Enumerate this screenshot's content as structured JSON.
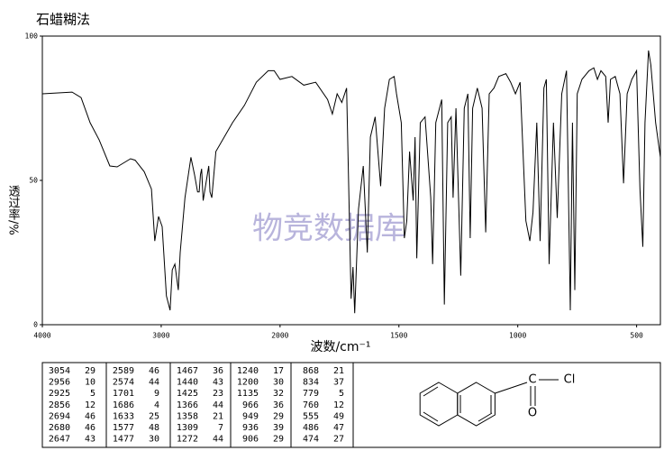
{
  "chart_data": {
    "type": "line",
    "title": "石蜡糊法",
    "y_label": "透过率/%",
    "x_label": "波数/cm⁻¹",
    "watermark": "物竞数据库",
    "color": "#000000",
    "xlim": [
      4000,
      400
    ],
    "x_scale_break": 2000,
    "xticks": [
      4000,
      3000,
      2000,
      1500,
      1000,
      500
    ],
    "ylim": [
      0,
      100
    ],
    "yticks": [
      0,
      50,
      100
    ],
    "x": [
      4000,
      3750,
      3674,
      3598,
      3522,
      3432,
      3371,
      3258,
      3219,
      3143,
      3082,
      3054,
      3022,
      2992,
      2956,
      2925,
      2907,
      2885,
      2856,
      2840,
      2800,
      2750,
      2720,
      2694,
      2680,
      2670,
      2660,
      2647,
      2620,
      2600,
      2589,
      2574,
      2540,
      2400,
      2300,
      2200,
      2100,
      2050,
      2000,
      1950,
      1900,
      1850,
      1800,
      1780,
      1760,
      1740,
      1720,
      1701,
      1693,
      1686,
      1670,
      1650,
      1633,
      1620,
      1600,
      1577,
      1560,
      1540,
      1520,
      1510,
      1490,
      1477,
      1467,
      1455,
      1440,
      1432,
      1425,
      1410,
      1390,
      1366,
      1358,
      1345,
      1320,
      1309,
      1295,
      1280,
      1272,
      1260,
      1240,
      1225,
      1210,
      1200,
      1190,
      1170,
      1150,
      1135,
      1120,
      1100,
      1080,
      1050,
      1030,
      1010,
      990,
      966,
      949,
      936,
      920,
      906,
      890,
      880,
      868,
      850,
      834,
      815,
      795,
      779,
      770,
      760,
      750,
      730,
      700,
      680,
      665,
      650,
      630,
      620,
      610,
      590,
      570,
      555,
      540,
      520,
      500,
      486,
      474,
      465,
      450,
      440,
      420,
      400
    ],
    "values": [
      80,
      80.6,
      78.7,
      70,
      64,
      55,
      54.7,
      57.5,
      57,
      53,
      47,
      29,
      37.5,
      34,
      10,
      5,
      19,
      21,
      12,
      25,
      44,
      58,
      52,
      46,
      46,
      52,
      54,
      43,
      50,
      55,
      46,
      44,
      60,
      70,
      76,
      84,
      88,
      88,
      85,
      86,
      83,
      84,
      78,
      73,
      80,
      77,
      82,
      9,
      20,
      4,
      40,
      55,
      25,
      65,
      72,
      48,
      75,
      85,
      86,
      80,
      70,
      30,
      36,
      60,
      43,
      65,
      23,
      70,
      72,
      44,
      21,
      70,
      78,
      7,
      70,
      72,
      44,
      75,
      17,
      75,
      80,
      30,
      75,
      82,
      75,
      32,
      80,
      82,
      86,
      87,
      84,
      80,
      84,
      36,
      29,
      39,
      70,
      29,
      82,
      85,
      21,
      70,
      37,
      80,
      88,
      5,
      70,
      12,
      80,
      85,
      88,
      89,
      85,
      88,
      86,
      70,
      85,
      86,
      80,
      49,
      80,
      85,
      88,
      47,
      27,
      70,
      95,
      90,
      70,
      58
    ]
  },
  "peak_table": {
    "rows": [
      [
        "3054",
        "29",
        "2589",
        "46",
        "1467",
        "36",
        "1240",
        "17",
        "868",
        "21"
      ],
      [
        "2956",
        "10",
        "2574",
        "44",
        "1440",
        "43",
        "1200",
        "30",
        "834",
        "37"
      ],
      [
        "2925",
        "5",
        "1701",
        "9",
        "1425",
        "23",
        "1135",
        "32",
        "779",
        "5"
      ],
      [
        "2856",
        "12",
        "1686",
        "4",
        "1366",
        "44",
        "966",
        "36",
        "760",
        "12"
      ],
      [
        "2694",
        "46",
        "1633",
        "25",
        "1358",
        "21",
        "949",
        "29",
        "555",
        "49"
      ],
      [
        "2680",
        "46",
        "1577",
        "48",
        "1309",
        "7",
        "936",
        "39",
        "486",
        "47"
      ],
      [
        "2647",
        "43",
        "1477",
        "30",
        "1272",
        "44",
        "906",
        "29",
        "474",
        "27"
      ]
    ]
  },
  "structure": {
    "atoms": [
      "C",
      "Cl",
      "O"
    ]
  }
}
